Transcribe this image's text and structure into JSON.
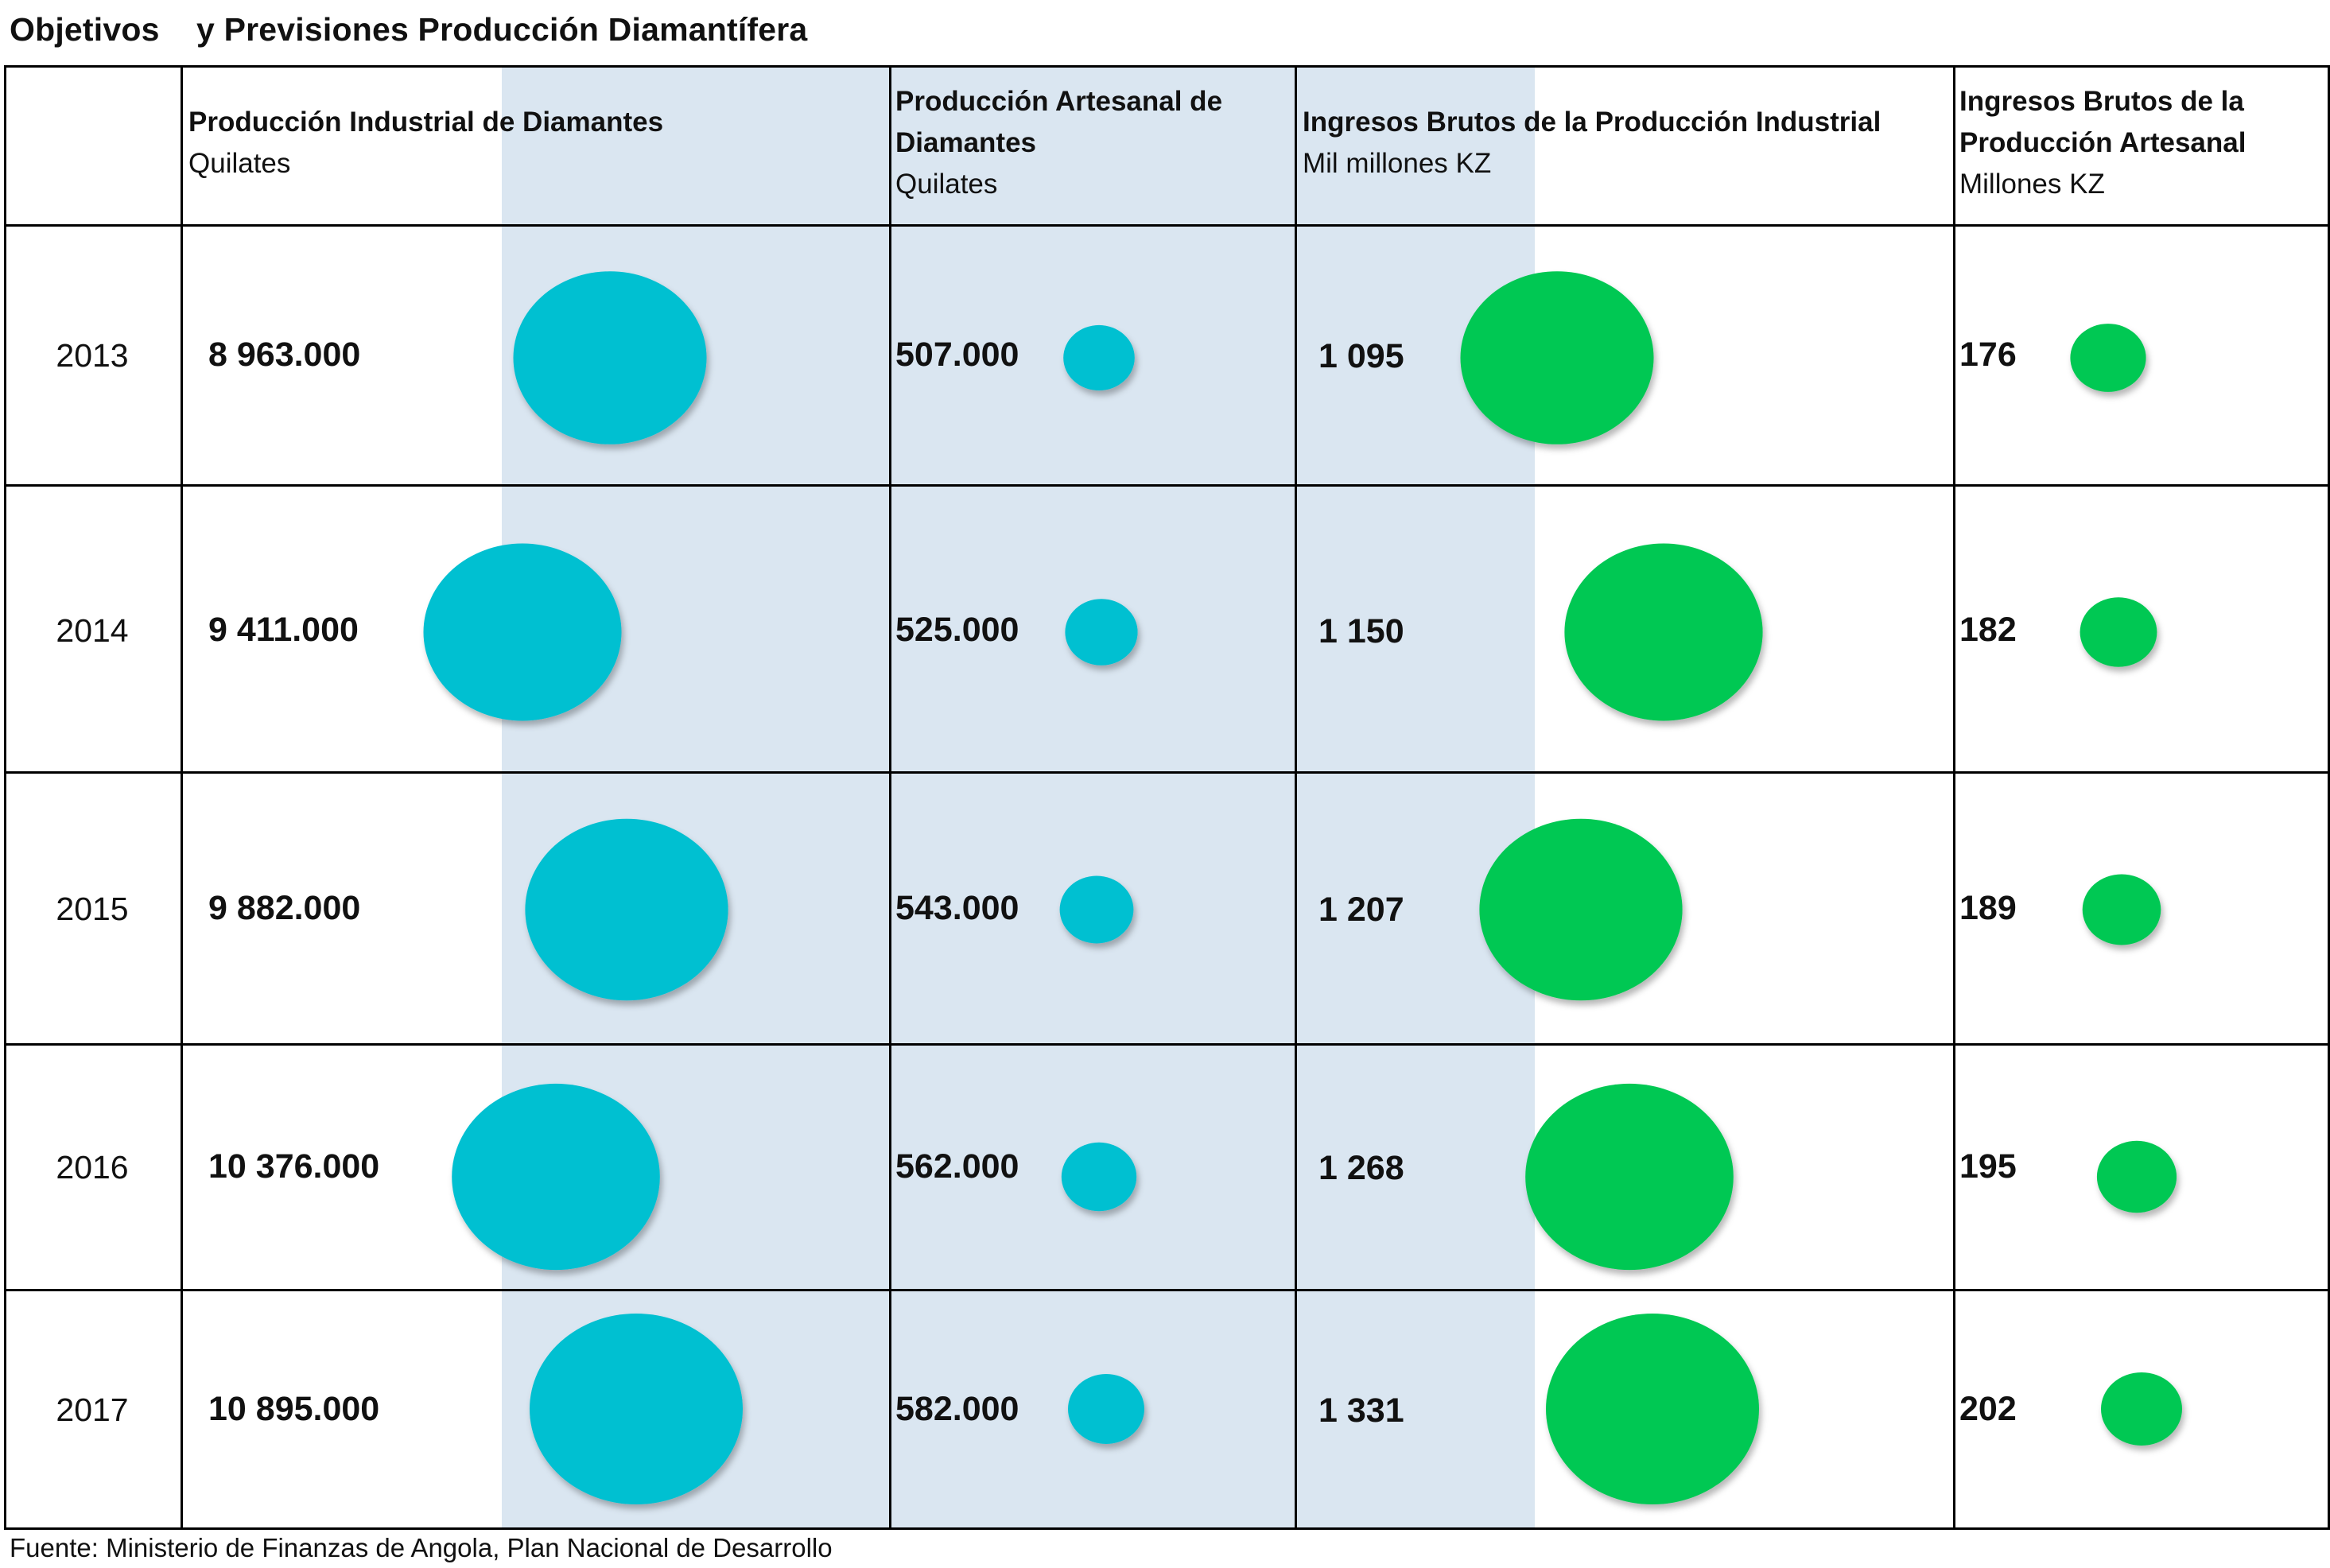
{
  "title": "Objetivos    y Previsiones Producción Diamantífera",
  "source": "Fuente: Ministerio de Finanzas de Angola, Plan Nacional de Desarrollo",
  "columns": [
    {
      "title": "Producción Industrial de Diamantes",
      "unit": "Quilates"
    },
    {
      "title": "Producción Artesanal de Diamantes",
      "unit": "Quilates"
    },
    {
      "title": "Ingresos Brutos de la Producción Industrial",
      "unit": "Mil millones KZ"
    },
    {
      "title": "Ingresos Brutos de la Producción Artesanal",
      "unit": "Millones KZ"
    }
  ],
  "rows": [
    {
      "year": "2013",
      "values": [
        "8 963.000",
        "507.000",
        "1 095",
        "176"
      ]
    },
    {
      "year": "2014",
      "values": [
        "9 411.000",
        "525.000",
        "1 150",
        "182"
      ]
    },
    {
      "year": "2015",
      "values": [
        "9 882.000",
        "543.000",
        "1 207",
        "189"
      ]
    },
    {
      "year": "2016",
      "values": [
        "10 376.000",
        "562.000",
        "1 268",
        "195"
      ]
    },
    {
      "year": "2017",
      "values": [
        "10 895.000",
        "582.000",
        "1 331",
        "202"
      ]
    }
  ],
  "colors": {
    "production_bubble": "#00c0d1",
    "revenue_bubble": "#00c853",
    "revenue_column_background": "#dae6f1"
  },
  "chart_data": {
    "type": "table",
    "categories": [
      "2013",
      "2014",
      "2015",
      "2016",
      "2017"
    ],
    "series": [
      {
        "name": "Producción Industrial de Diamantes",
        "unit": "Quilates",
        "values": [
          8963000,
          9411000,
          9882000,
          10376000,
          10895000
        ]
      },
      {
        "name": "Producción Artesanal de Diamantes",
        "unit": "Quilates",
        "values": [
          507000,
          525000,
          543000,
          562000,
          582000
        ]
      },
      {
        "name": "Ingresos Brutos de la Producción Industrial",
        "unit": "Mil millones KZ",
        "values": [
          1095,
          1150,
          1207,
          1268,
          1331
        ]
      },
      {
        "name": "Ingresos Brutos de la Producción Artesanal",
        "unit": "Millones KZ",
        "values": [
          176,
          182,
          189,
          195,
          202
        ]
      }
    ]
  }
}
